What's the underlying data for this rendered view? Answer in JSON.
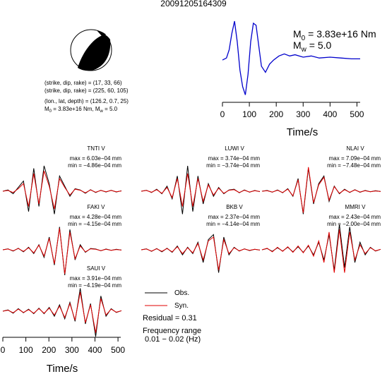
{
  "figure": {
    "title": "20091205164309",
    "event": {
      "line1": "(strike, dip, rake) = (17, 33, 66)",
      "line2": "(strike, dip, rake) = (225, 60, 105)",
      "line3": "(lon., lat, depth) = (126.2, 0.7, 25)",
      "line4_prefix": "M",
      "line4_sub0": "0",
      "line4_mid": " = 3.83e+16 Nm, M",
      "line4_subw": "w",
      "line4_end": " = 5.0"
    },
    "stf": {
      "m0_prefix": "M",
      "m0_sub": "0",
      "m0_val": " = 3.83e+16 Nm",
      "mw_prefix": "M",
      "mw_sub": "w",
      "mw_val": " = 5.0",
      "xlabel": "Time/s"
    },
    "bottom_xlabel": "Time/s",
    "legend": {
      "obs": "Obs.",
      "syn": "Syn."
    },
    "residual": "Residual = 0.31",
    "freq_label": "Frequency range",
    "freq_value": "0.01 − 0.02 (Hz)",
    "colors": {
      "obs": "#000000",
      "syn": "#e00000",
      "stf": "#0000cc",
      "beach": "#000000"
    }
  },
  "chart_data": [
    {
      "type": "line",
      "panel": "source time function",
      "xlabel": "Time/s",
      "xlim": [
        0,
        512
      ],
      "xticks": [
        0,
        100,
        200,
        300,
        400,
        500
      ],
      "series": [
        {
          "values_x": [
            0,
            15,
            25,
            35,
            45,
            55,
            65,
            75,
            85,
            95,
            105,
            115,
            125,
            135,
            145,
            160,
            175,
            190,
            210,
            230,
            250,
            270,
            300,
            330,
            360,
            400,
            440,
            480,
            512
          ],
          "values_y": [
            0.05,
            0.1,
            0.3,
            0.7,
            1.0,
            0.5,
            -0.2,
            -0.6,
            -0.8,
            -0.3,
            0.5,
            0.95,
            0.9,
            0.4,
            -0.1,
            -0.25,
            -0.05,
            0.05,
            0.15,
            0.2,
            0.15,
            0.18,
            0.12,
            0.15,
            0.1,
            0.12,
            0.1,
            0.08,
            0.08
          ]
        }
      ]
    },
    {
      "type": "line",
      "panel": "waveforms",
      "xlim": [
        0,
        512
      ],
      "xticks": [
        0,
        100,
        200,
        300,
        400,
        500
      ],
      "stations": [
        {
          "name": "TNTI V",
          "max": "max = 6.03e−04 mm",
          "min": "min = −4.86e−04 mm",
          "obs": [
            0,
            0.05,
            -0.1,
            0.15,
            0.4,
            -0.8,
            0.9,
            -0.6,
            1.0,
            0.3,
            -0.9,
            0.6,
            0.2,
            -0.2,
            0.1,
            0.05,
            -0.08,
            0.06,
            -0.05,
            0.04,
            -0.03,
            0.04,
            -0.03,
            0.02
          ],
          "syn": [
            0,
            0.03,
            -0.05,
            0.1,
            0.3,
            -0.6,
            0.7,
            -0.5,
            0.8,
            0.2,
            -0.7,
            0.5,
            0.15,
            -0.15,
            0.08,
            0.04,
            -0.06,
            0.05,
            -0.04,
            0.03,
            -0.02,
            0.03,
            -0.02,
            0.01
          ]
        },
        {
          "name": "LUWI V",
          "max": "max = 3.74e−04 mm",
          "min": "min = −3.74e−04 mm",
          "obs": [
            0,
            0.04,
            -0.05,
            0.08,
            -0.1,
            0.2,
            -0.3,
            0.6,
            -0.9,
            1.0,
            -0.8,
            0.6,
            -0.5,
            0.3,
            -0.2,
            0.15,
            -0.1,
            0.05,
            0.08,
            -0.06,
            0.05,
            -0.04,
            0.03,
            -0.02
          ],
          "syn": [
            0,
            0.03,
            -0.04,
            0.06,
            -0.08,
            0.15,
            -0.25,
            0.5,
            -0.6,
            0.7,
            -0.6,
            0.5,
            -0.4,
            0.25,
            -0.15,
            0.12,
            -0.08,
            0.04,
            0.06,
            -0.05,
            0.04,
            -0.03,
            0.02,
            -0.01
          ]
        },
        {
          "name": "NLAI V",
          "max": "max = 7.09e−04 mm",
          "min": "min = −7.48e−04 mm",
          "obs": [
            0,
            0.03,
            -0.04,
            0.05,
            -0.06,
            0.1,
            -0.2,
            0.5,
            -0.9,
            0.9,
            -0.5,
            0.3,
            0.6,
            -0.4,
            0.2,
            -0.1,
            0.08,
            -0.05,
            0.06,
            -0.04,
            0.03,
            -0.02,
            0.02,
            -0.01
          ],
          "syn": [
            0,
            0.02,
            -0.03,
            0.04,
            -0.05,
            0.08,
            -0.18,
            0.45,
            -0.85,
            0.95,
            -0.45,
            0.25,
            0.55,
            -0.35,
            0.18,
            -0.08,
            0.06,
            -0.04,
            0.05,
            -0.03,
            0.02,
            -0.02,
            0.01,
            -0.01
          ]
        },
        {
          "name": "FAKI V",
          "max": "max = 4.28e−04 mm",
          "min": "min = −4.15e−04 mm",
          "obs": [
            0,
            0.04,
            -0.05,
            0.06,
            -0.08,
            0.1,
            -0.15,
            0.2,
            -0.3,
            0.5,
            -0.6,
            0.9,
            -1.0,
            0.8,
            -0.4,
            0.2,
            -0.1,
            0.05,
            0.03,
            -0.04,
            0.03,
            -0.02,
            0.02,
            -0.01
          ],
          "syn": [
            0,
            0.03,
            -0.04,
            0.05,
            -0.06,
            0.08,
            -0.12,
            0.18,
            -0.25,
            0.45,
            -0.55,
            0.85,
            -0.95,
            0.7,
            -0.35,
            0.15,
            -0.08,
            0.04,
            0.02,
            -0.03,
            0.02,
            -0.02,
            0.01,
            -0.01
          ]
        },
        {
          "name": "BKB V",
          "max": "max = 2.37e−04 mm",
          "min": "min = −4.14e−04 mm",
          "obs": [
            0,
            0.04,
            -0.06,
            0.05,
            -0.08,
            0.06,
            -0.1,
            0.15,
            -0.2,
            0.1,
            -0.15,
            0.3,
            -0.5,
            0.4,
            0.6,
            -0.9,
            0.5,
            -0.2,
            0.1,
            -0.05,
            0.04,
            -0.03,
            0.02,
            -0.01
          ],
          "syn": [
            0,
            0.03,
            -0.05,
            0.04,
            -0.06,
            0.05,
            -0.08,
            0.12,
            -0.15,
            0.08,
            -0.12,
            0.25,
            -0.4,
            0.35,
            0.5,
            -0.8,
            0.4,
            -0.15,
            0.08,
            -0.04,
            0.03,
            -0.02,
            0.02,
            -0.01
          ]
        },
        {
          "name": "MMRI V",
          "max": "max = 2.43e−04 mm",
          "min": "min = −2.00e−04 mm",
          "obs": [
            0,
            0.05,
            -0.06,
            0.08,
            -0.05,
            0.1,
            -0.08,
            0.12,
            -0.1,
            0.15,
            -0.2,
            0.3,
            -0.4,
            0.6,
            -0.8,
            1.0,
            -0.7,
            0.9,
            -0.5,
            0.3,
            -0.2,
            0.1,
            -0.05,
            0.02
          ],
          "syn": [
            0,
            0.06,
            -0.08,
            0.1,
            -0.06,
            0.12,
            -0.1,
            0.15,
            -0.12,
            0.18,
            -0.25,
            0.35,
            -0.5,
            0.7,
            -0.9,
            0.8,
            -0.9,
            0.7,
            -0.4,
            0.2,
            -0.15,
            0.08,
            -0.04,
            0.02
          ]
        },
        {
          "name": "SAUI V",
          "max": "max = 3.91e−04 mm",
          "min": "min = −4.19e−04 mm",
          "obs": [
            0,
            0.05,
            -0.08,
            0.1,
            -0.06,
            0.08,
            -0.1,
            0.12,
            -0.1,
            0.15,
            -0.2,
            0.25,
            -0.3,
            0.35,
            -0.4,
            0.9,
            -0.5,
            0.3,
            -1.0,
            0.6,
            -0.2,
            0.1,
            -0.05,
            0.02
          ],
          "syn": [
            0,
            0.04,
            -0.06,
            0.08,
            -0.05,
            0.06,
            -0.08,
            0.1,
            -0.08,
            0.12,
            -0.15,
            0.2,
            -0.25,
            0.3,
            -0.35,
            0.75,
            -0.45,
            0.25,
            -0.85,
            0.5,
            -0.15,
            0.08,
            -0.04,
            0.02
          ]
        }
      ]
    }
  ]
}
